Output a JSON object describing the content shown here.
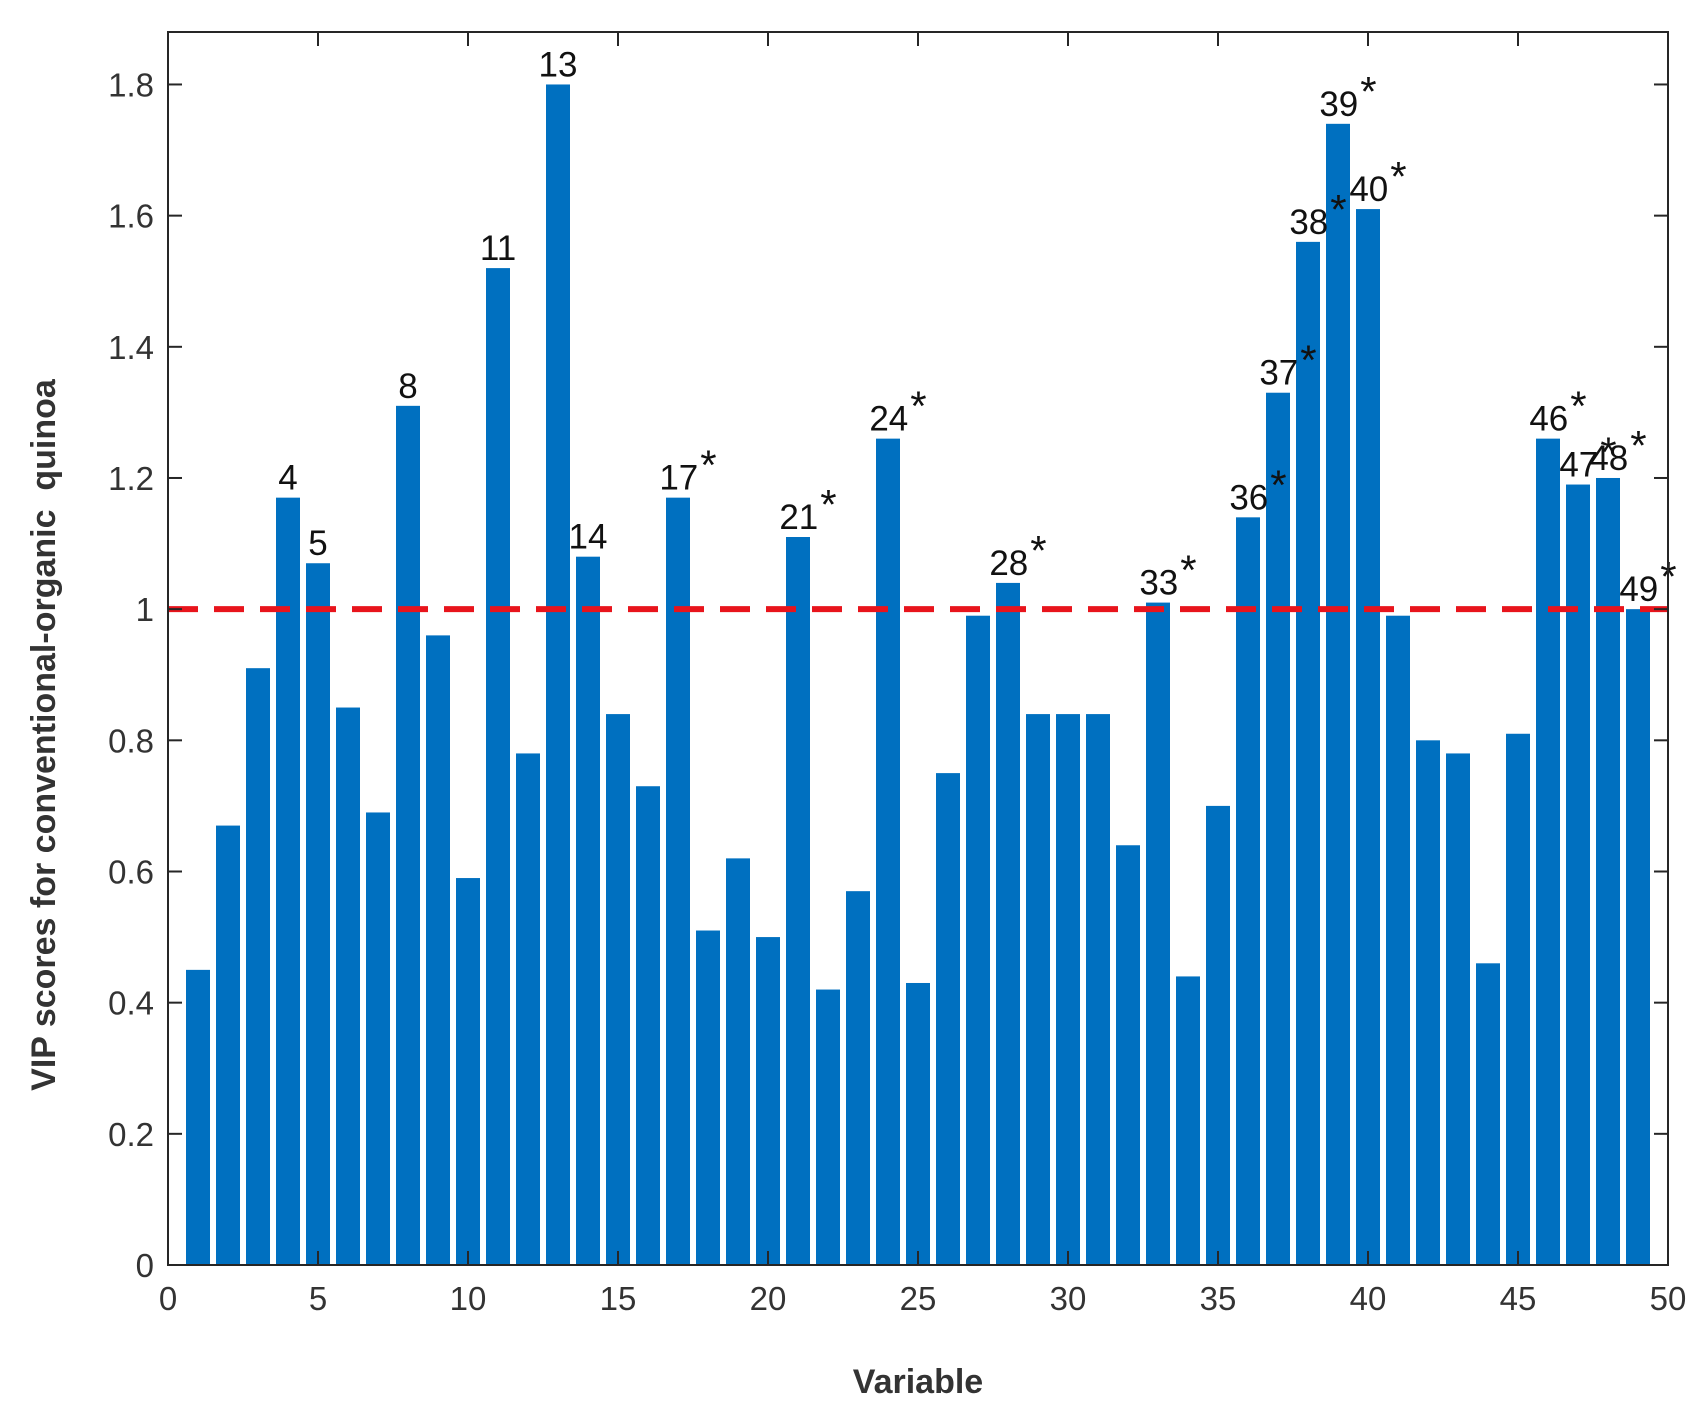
{
  "chart_data": {
    "type": "bar",
    "title": "",
    "xlabel": "Variable",
    "ylabel": "VIP scores for conventional-organic  quinoa",
    "xlim": [
      0,
      50
    ],
    "ylim": [
      0,
      1.88
    ],
    "xticks": [
      0,
      5,
      10,
      15,
      20,
      25,
      30,
      35,
      40,
      45,
      50
    ],
    "xtick_labels": [
      "0",
      "5",
      "10",
      "15",
      "20",
      "25",
      "30",
      "35",
      "40",
      "45",
      "50"
    ],
    "yticks": [
      0,
      0.2,
      0.4,
      0.6,
      0.8,
      1.0,
      1.2,
      1.4,
      1.6,
      1.8
    ],
    "ytick_labels": [
      "0",
      "0.2",
      "0.4",
      "0.6",
      "0.8",
      "1",
      "1.2",
      "1.4",
      "1.6",
      "1.8"
    ],
    "grid": false,
    "bar_color": "#0070C0",
    "threshold": {
      "value": 1.0,
      "color": "#E8141C",
      "style": "dashed"
    },
    "categories": [
      1,
      2,
      3,
      4,
      5,
      6,
      7,
      8,
      9,
      10,
      11,
      12,
      13,
      14,
      15,
      16,
      17,
      18,
      19,
      20,
      21,
      22,
      23,
      24,
      25,
      26,
      27,
      28,
      29,
      30,
      31,
      32,
      33,
      34,
      35,
      36,
      37,
      38,
      39,
      40,
      41,
      42,
      43,
      44,
      45,
      46,
      47,
      48,
      49
    ],
    "values": [
      0.45,
      0.67,
      0.91,
      1.17,
      1.07,
      0.85,
      0.69,
      1.31,
      0.96,
      0.59,
      1.52,
      0.78,
      1.8,
      1.08,
      0.84,
      0.73,
      1.17,
      0.51,
      0.62,
      0.5,
      1.11,
      0.42,
      0.57,
      1.26,
      0.43,
      0.75,
      0.99,
      1.04,
      0.84,
      0.84,
      0.84,
      0.64,
      1.01,
      0.44,
      0.7,
      1.14,
      1.33,
      1.56,
      1.74,
      1.61,
      0.99,
      0.8,
      0.78,
      0.46,
      0.81,
      1.26,
      1.19,
      1.2,
      1.0
    ],
    "annotations": [
      {
        "bar": 4,
        "text": "4",
        "star": ""
      },
      {
        "bar": 5,
        "text": "5",
        "star": ""
      },
      {
        "bar": 8,
        "text": "8",
        "star": ""
      },
      {
        "bar": 11,
        "text": "11",
        "star": ""
      },
      {
        "bar": 13,
        "text": "13",
        "star": ""
      },
      {
        "bar": 14,
        "text": "14",
        "star": ""
      },
      {
        "bar": 17,
        "text": "17",
        "star": "*"
      },
      {
        "bar": 21,
        "text": "21",
        "star": "*"
      },
      {
        "bar": 24,
        "text": "24",
        "star": "*"
      },
      {
        "bar": 28,
        "text": "28",
        "star": "*"
      },
      {
        "bar": 33,
        "text": "33",
        "star": "*"
      },
      {
        "bar": 36,
        "text": "36",
        "star": "*"
      },
      {
        "bar": 37,
        "text": "37",
        "star": "*"
      },
      {
        "bar": 38,
        "text": "38",
        "star": "*"
      },
      {
        "bar": 39,
        "text": "39",
        "star": "*"
      },
      {
        "bar": 40,
        "text": "40",
        "star": "*"
      },
      {
        "bar": 46,
        "text": "46",
        "star": "*"
      },
      {
        "bar": 47,
        "text": "47",
        "star": "*"
      },
      {
        "bar": 48,
        "text": "48",
        "star": "*"
      },
      {
        "bar": 49,
        "text": "49",
        "star": "*"
      }
    ]
  }
}
